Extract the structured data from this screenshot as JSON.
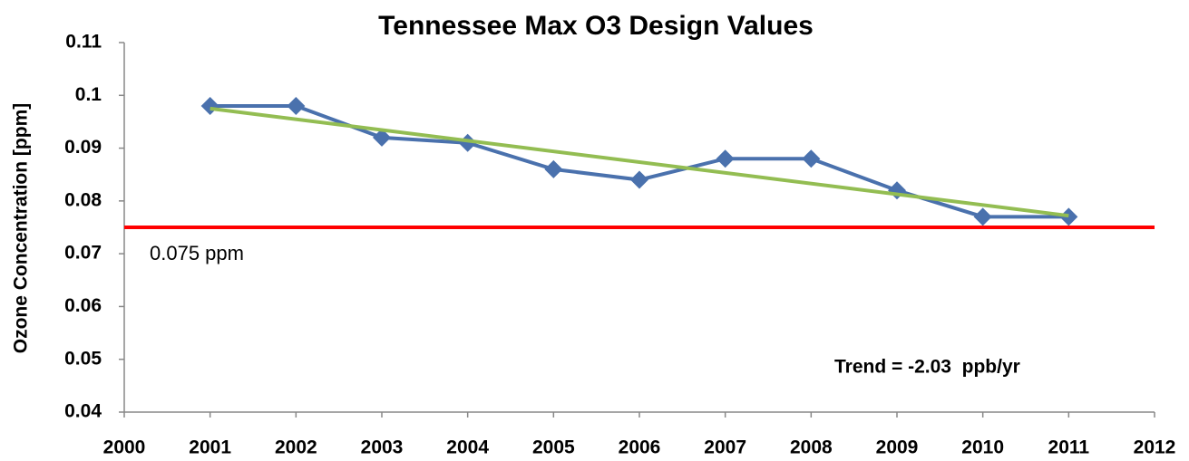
{
  "chart_data": {
    "type": "line",
    "title": "Tennessee Max O3 Design Values",
    "y_label": "Ozone Concentration [ppm]",
    "x": [
      2001,
      2002,
      2003,
      2004,
      2005,
      2006,
      2007,
      2008,
      2009,
      2010,
      2011
    ],
    "series": [
      {
        "color": "#4a71ad",
        "values": [
          0.098,
          0.098,
          0.092,
          0.091,
          0.086,
          0.084,
          0.088,
          0.088,
          0.082,
          0.077,
          0.077
        ]
      }
    ],
    "trendline": {
      "x": [
        2001,
        2011
      ],
      "values": [
        0.0975,
        0.0772
      ],
      "color": "#93bd52"
    },
    "reference": {
      "value": 0.075,
      "label": "0.075 ppm",
      "color": "#ff0000"
    },
    "annotation": "Trend = -2.03  ppb/yr",
    "xlim": [
      2000,
      2012
    ],
    "xticks": [
      2000,
      2001,
      2002,
      2003,
      2004,
      2005,
      2006,
      2007,
      2008,
      2009,
      2010,
      2011,
      2012
    ],
    "ylim": [
      0.04,
      0.11
    ],
    "yticks": [
      0.04,
      0.05,
      0.06,
      0.07,
      0.08,
      0.09,
      0.1,
      0.11
    ],
    "grid": false
  }
}
